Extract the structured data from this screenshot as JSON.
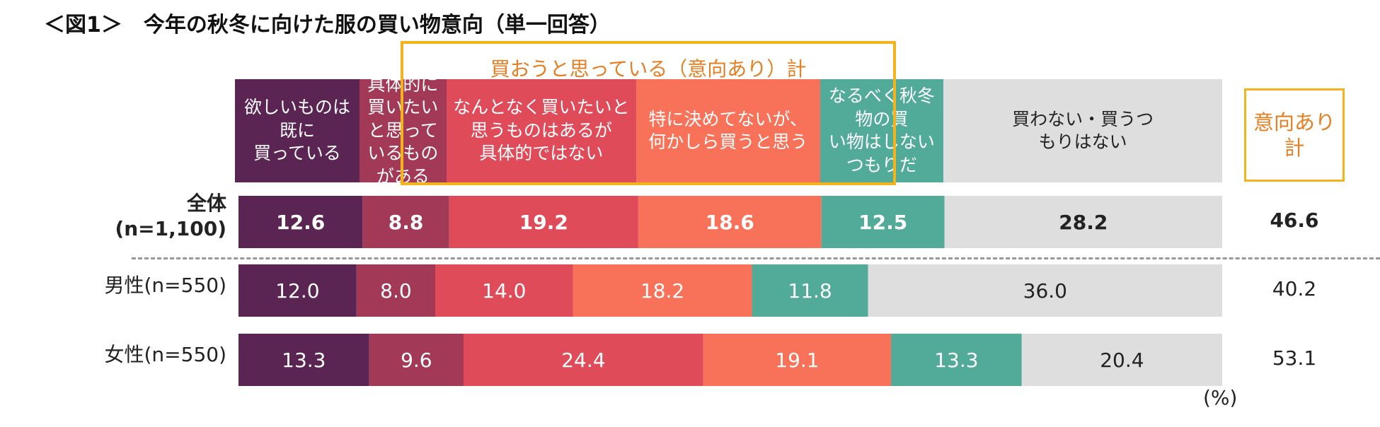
{
  "title": "＜図1＞　今年の秋冬に向けた服の買い物意向（単一回答）",
  "group_label": "買おうと思っている（意向あり）計",
  "total_header": "意向あり\n計",
  "unit": "(%)",
  "colors": {
    "purple": "#5b2553",
    "plum": "#a23a57",
    "red": "#e04b5a",
    "salmon": "#f77258",
    "teal": "#52ab98",
    "gray": "#dedede",
    "accent": "#f2b31c",
    "accent_text": "#e67e22"
  },
  "chart_data": {
    "type": "bar",
    "orientation": "horizontal-stacked-100",
    "title": "＜図1＞　今年の秋冬に向けた服の買い物意向（単一回答）",
    "categories": [
      "全体\n(n=1,100)",
      "男性(n=550)",
      "女性(n=550)"
    ],
    "series": [
      {
        "name": "欲しいものは既に\n買っている",
        "color": "#5b2553",
        "values": [
          12.6,
          12.0,
          13.3
        ]
      },
      {
        "name": "具体的に\n買いたいと思って\nいるものがある",
        "color": "#a23a57",
        "values": [
          8.8,
          8.0,
          9.6
        ]
      },
      {
        "name": "なんとなく買いたいと\n思うものはあるが\n具体的ではない",
        "color": "#e04b5a",
        "values": [
          19.2,
          14.0,
          24.4
        ]
      },
      {
        "name": "特に決めてないが、\n何かしら買うと思う",
        "color": "#f77258",
        "values": [
          18.6,
          18.2,
          19.1
        ]
      },
      {
        "name": "なるべく秋冬物の買\nい物はしないつもりだ",
        "color": "#52ab98",
        "values": [
          12.5,
          11.8,
          13.3
        ]
      },
      {
        "name": "買わない・買うつ\nもりはない",
        "color": "#dedede",
        "values": [
          28.2,
          36.0,
          20.4
        ]
      }
    ],
    "totals": {
      "name": "意向あり計",
      "values": [
        "46.6",
        "40.2",
        "53.1"
      ]
    },
    "unit": "(%)",
    "xlim": [
      0,
      100
    ],
    "grid": false,
    "legend": "top"
  }
}
